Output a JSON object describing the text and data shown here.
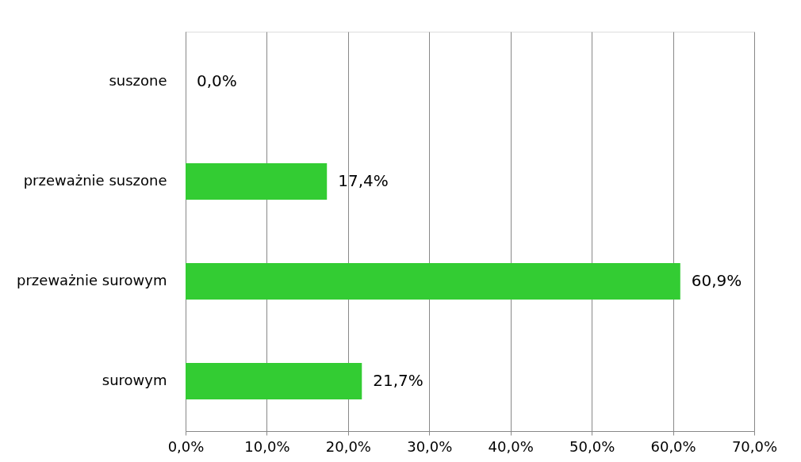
{
  "chart_data": {
    "type": "bar",
    "orientation": "horizontal",
    "categories": [
      "suszone",
      "przeważnie suszone",
      "przeważnie surowym",
      "surowym"
    ],
    "values": [
      0.0,
      17.4,
      60.9,
      21.7
    ],
    "value_labels": [
      "0,0%",
      "17,4%",
      "60,9%",
      "21,7%"
    ],
    "color": "#33cc33",
    "xlim": [
      0,
      70
    ],
    "xticks": [
      {
        "value": 0,
        "label": "0,0%"
      },
      {
        "value": 10,
        "label": "10,0%"
      },
      {
        "value": 20,
        "label": "20,0%"
      },
      {
        "value": 30,
        "label": "30,0%"
      },
      {
        "value": 40,
        "label": "40,0%"
      },
      {
        "value": 50,
        "label": "50,0%"
      },
      {
        "value": 60,
        "label": "60,0%"
      },
      {
        "value": 70,
        "label": "70,0%"
      }
    ],
    "grid": "x"
  }
}
